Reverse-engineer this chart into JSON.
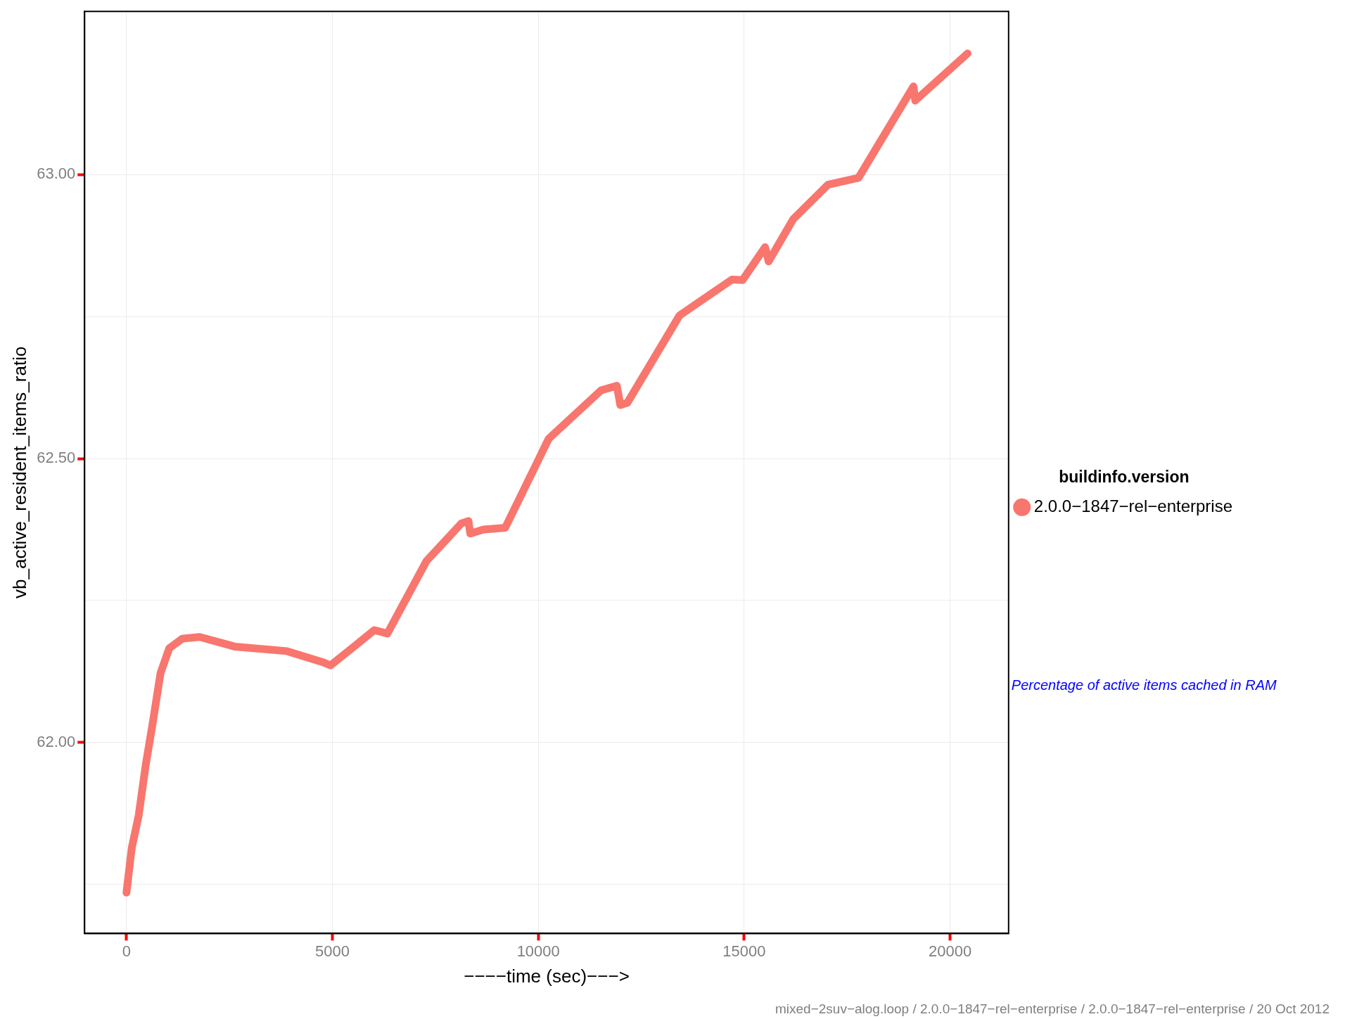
{
  "chart_data": {
    "type": "line",
    "xlabel": "−−−−time (sec)−−−>",
    "ylabel": "vb_active_resident_items_ratio",
    "legend_title": "buildinfo.version",
    "legend": "right",
    "marker": "none",
    "grid": true,
    "xlim": [
      -1017,
      21420
    ],
    "xticks": [
      0,
      5000,
      10000,
      15000,
      20000
    ],
    "ylim": [
      61.664,
      63.287
    ],
    "yticks": [
      {
        "value": 61.75,
        "label": null
      },
      {
        "value": 62,
        "label": "62.00"
      },
      {
        "value": 62.25,
        "label": null
      },
      {
        "value": 62.5,
        "label": "62.50"
      },
      {
        "value": 62.75,
        "label": null
      },
      {
        "value": 63,
        "label": "63.00"
      }
    ],
    "series": [
      {
        "name": "2.0.0−1847−rel−enterprise",
        "color": "#f8766d",
        "x": [
          0,
          127,
          297,
          466,
          636,
          826,
          1038,
          1356,
          1780,
          2627,
          3898,
          4746,
          4958,
          5593,
          6017,
          6335,
          7288,
          8136,
          8305,
          8347,
          8665,
          9195,
          10254,
          11525,
          11907,
          11992,
          12161,
          13432,
          14703,
          14958,
          15508,
          15593,
          16186,
          17034,
          17775,
          19110,
          19153,
          20424
        ],
        "values": [
          61.736,
          61.814,
          61.872,
          61.96,
          62.034,
          62.122,
          62.166,
          62.183,
          62.186,
          62.169,
          62.161,
          62.142,
          62.136,
          62.173,
          62.198,
          62.192,
          62.32,
          62.386,
          62.39,
          62.368,
          62.375,
          62.378,
          62.535,
          62.62,
          62.628,
          62.594,
          62.598,
          62.752,
          62.815,
          62.814,
          62.872,
          62.847,
          62.921,
          62.982,
          62.994,
          63.155,
          63.13,
          63.213
        ]
      }
    ],
    "annotations": [
      "Percentage of active items cached in RAM",
      "mixed−2suv−alog.loop / 2.0.0−1847−rel−enterprise / 2.0.0−1847−rel−enterprise / 20 Oct 2012"
    ]
  }
}
